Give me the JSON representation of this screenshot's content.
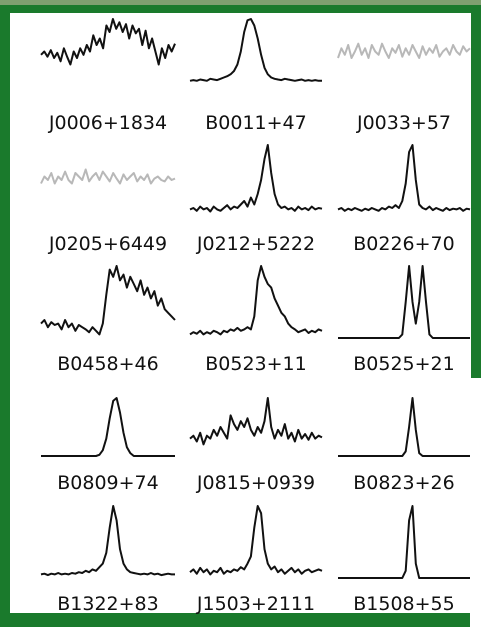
{
  "chart_data": {
    "type": "line",
    "title": "",
    "grid": false,
    "layout": "5 rows x 3 columns of small pulse-profile panels",
    "panels": [
      {
        "label": "J0006+1834",
        "color": "#111111",
        "profile": [
          0.45,
          0.5,
          0.42,
          0.52,
          0.4,
          0.48,
          0.35,
          0.55,
          0.42,
          0.3,
          0.5,
          0.4,
          0.55,
          0.45,
          0.6,
          0.5,
          0.75,
          0.6,
          0.7,
          0.55,
          0.9,
          0.8,
          1.0,
          0.85,
          0.95,
          0.8,
          0.92,
          0.7,
          0.9,
          0.78,
          0.85,
          0.6,
          0.82,
          0.55,
          0.7,
          0.5,
          0.3,
          0.55,
          0.4,
          0.6,
          0.5,
          0.62
        ]
      },
      {
        "label": "B0011+47",
        "color": "#111111",
        "profile": [
          0.05,
          0.06,
          0.05,
          0.07,
          0.06,
          0.05,
          0.08,
          0.07,
          0.06,
          0.08,
          0.1,
          0.12,
          0.15,
          0.2,
          0.3,
          0.5,
          0.8,
          0.98,
          1.0,
          0.9,
          0.7,
          0.45,
          0.25,
          0.15,
          0.1,
          0.08,
          0.07,
          0.06,
          0.08,
          0.07,
          0.06,
          0.05,
          0.06,
          0.07,
          0.05,
          0.06,
          0.05,
          0.06,
          0.05,
          0.05
        ]
      },
      {
        "label": "J0033+57",
        "color": "#b8b8b8",
        "profile": [
          0.4,
          0.55,
          0.45,
          0.6,
          0.4,
          0.5,
          0.62,
          0.45,
          0.55,
          0.4,
          0.6,
          0.5,
          0.45,
          0.62,
          0.5,
          0.4,
          0.55,
          0.48,
          0.6,
          0.42,
          0.55,
          0.45,
          0.6,
          0.5,
          0.4,
          0.58,
          0.45,
          0.55,
          0.48,
          0.6,
          0.42,
          0.5,
          0.55,
          0.45,
          0.6,
          0.5,
          0.45,
          0.58,
          0.5,
          0.55
        ]
      },
      {
        "label": "J0205+6449",
        "color": "#b8b8b8",
        "profile": [
          0.45,
          0.55,
          0.5,
          0.6,
          0.45,
          0.55,
          0.5,
          0.62,
          0.5,
          0.45,
          0.6,
          0.55,
          0.5,
          0.65,
          0.48,
          0.55,
          0.6,
          0.5,
          0.62,
          0.55,
          0.48,
          0.6,
          0.52,
          0.45,
          0.58,
          0.5,
          0.55,
          0.6,
          0.48,
          0.55,
          0.5,
          0.58,
          0.45,
          0.52,
          0.55,
          0.5,
          0.48,
          0.55,
          0.5,
          0.52
        ]
      },
      {
        "label": "J0212+5222",
        "color": "#111111",
        "profile": [
          0.08,
          0.1,
          0.06,
          0.12,
          0.08,
          0.1,
          0.05,
          0.12,
          0.08,
          0.06,
          0.1,
          0.14,
          0.08,
          0.12,
          0.1,
          0.15,
          0.2,
          0.12,
          0.25,
          0.15,
          0.3,
          0.5,
          0.8,
          1.0,
          0.6,
          0.3,
          0.15,
          0.1,
          0.12,
          0.08,
          0.1,
          0.06,
          0.12,
          0.08,
          0.1,
          0.07,
          0.12,
          0.08,
          0.1,
          0.09
        ]
      },
      {
        "label": "B0226+70",
        "color": "#111111",
        "profile": [
          0.08,
          0.1,
          0.06,
          0.09,
          0.07,
          0.1,
          0.08,
          0.06,
          0.09,
          0.07,
          0.1,
          0.08,
          0.06,
          0.1,
          0.08,
          0.12,
          0.1,
          0.14,
          0.1,
          0.2,
          0.45,
          0.9,
          1.0,
          0.5,
          0.15,
          0.1,
          0.08,
          0.12,
          0.07,
          0.1,
          0.08,
          0.06,
          0.1,
          0.07,
          0.09,
          0.08,
          0.1,
          0.06,
          0.09,
          0.08
        ]
      },
      {
        "label": "B0458+46",
        "color": "#111111",
        "profile": [
          0.2,
          0.25,
          0.15,
          0.22,
          0.18,
          0.2,
          0.12,
          0.25,
          0.15,
          0.2,
          0.1,
          0.18,
          0.15,
          0.12,
          0.08,
          0.15,
          0.1,
          0.05,
          0.2,
          0.6,
          0.95,
          0.85,
          1.0,
          0.8,
          0.88,
          0.7,
          0.85,
          0.75,
          0.65,
          0.8,
          0.6,
          0.7,
          0.55,
          0.65,
          0.45,
          0.55,
          0.4,
          0.35,
          0.3,
          0.25
        ]
      },
      {
        "label": "B0523+11",
        "color": "#111111",
        "profile": [
          0.05,
          0.08,
          0.06,
          0.1,
          0.05,
          0.08,
          0.06,
          0.1,
          0.08,
          0.05,
          0.1,
          0.08,
          0.12,
          0.1,
          0.14,
          0.1,
          0.12,
          0.15,
          0.12,
          0.3,
          0.8,
          1.0,
          0.85,
          0.75,
          0.7,
          0.55,
          0.45,
          0.35,
          0.3,
          0.2,
          0.15,
          0.12,
          0.08,
          0.1,
          0.12,
          0.07,
          0.1,
          0.08,
          0.12,
          0.1
        ]
      },
      {
        "label": "B0525+21",
        "color": "#111111",
        "profile": [
          0.0,
          0.0,
          0.0,
          0.0,
          0.0,
          0.0,
          0.0,
          0.0,
          0.0,
          0.0,
          0.0,
          0.0,
          0.0,
          0.0,
          0.0,
          0.0,
          0.0,
          0.0,
          0.0,
          0.05,
          0.5,
          1.0,
          0.5,
          0.2,
          0.5,
          1.0,
          0.5,
          0.05,
          0.0,
          0.0,
          0.0,
          0.0,
          0.0,
          0.0,
          0.0,
          0.0,
          0.0,
          0.0,
          0.0,
          0.0
        ]
      },
      {
        "label": "B0809+74",
        "color": "#111111",
        "profile": [
          0.0,
          0.0,
          0.0,
          0.0,
          0.0,
          0.0,
          0.0,
          0.0,
          0.0,
          0.0,
          0.0,
          0.0,
          0.0,
          0.0,
          0.0,
          0.0,
          0.0,
          0.02,
          0.1,
          0.3,
          0.65,
          0.95,
          1.0,
          0.75,
          0.4,
          0.15,
          0.05,
          0.0,
          0.0,
          0.0,
          0.0,
          0.0,
          0.0,
          0.0,
          0.0,
          0.0,
          0.0,
          0.0,
          0.0,
          0.0
        ]
      },
      {
        "label": "J0815+0939",
        "color": "#111111",
        "profile": [
          0.3,
          0.35,
          0.25,
          0.4,
          0.2,
          0.35,
          0.3,
          0.45,
          0.35,
          0.5,
          0.4,
          0.3,
          0.7,
          0.55,
          0.45,
          0.6,
          0.5,
          0.65,
          0.45,
          0.35,
          0.5,
          0.4,
          0.6,
          1.0,
          0.5,
          0.3,
          0.45,
          0.35,
          0.55,
          0.3,
          0.4,
          0.25,
          0.45,
          0.3,
          0.38,
          0.28,
          0.4,
          0.3,
          0.35,
          0.32
        ]
      },
      {
        "label": "B0823+26",
        "color": "#111111",
        "profile": [
          0.0,
          0.0,
          0.0,
          0.0,
          0.0,
          0.0,
          0.0,
          0.0,
          0.0,
          0.0,
          0.0,
          0.0,
          0.0,
          0.0,
          0.0,
          0.0,
          0.0,
          0.0,
          0.0,
          0.0,
          0.08,
          0.5,
          1.0,
          0.45,
          0.05,
          0.0,
          0.0,
          0.0,
          0.0,
          0.0,
          0.0,
          0.0,
          0.0,
          0.0,
          0.0,
          0.0,
          0.0,
          0.0,
          0.0,
          0.0
        ]
      },
      {
        "label": "B1322+83",
        "color": "#111111",
        "profile": [
          0.05,
          0.06,
          0.04,
          0.06,
          0.05,
          0.07,
          0.05,
          0.06,
          0.05,
          0.07,
          0.06,
          0.08,
          0.07,
          0.1,
          0.08,
          0.12,
          0.1,
          0.15,
          0.2,
          0.35,
          0.7,
          1.0,
          0.8,
          0.4,
          0.2,
          0.12,
          0.08,
          0.07,
          0.06,
          0.05,
          0.06,
          0.05,
          0.07,
          0.05,
          0.06,
          0.04,
          0.05,
          0.06,
          0.05,
          0.05
        ]
      },
      {
        "label": "J1503+2111",
        "color": "#111111",
        "profile": [
          0.08,
          0.12,
          0.06,
          0.14,
          0.08,
          0.12,
          0.05,
          0.1,
          0.08,
          0.14,
          0.06,
          0.1,
          0.08,
          0.12,
          0.1,
          0.15,
          0.12,
          0.2,
          0.3,
          0.7,
          1.0,
          0.9,
          0.4,
          0.2,
          0.12,
          0.16,
          0.08,
          0.12,
          0.06,
          0.1,
          0.14,
          0.08,
          0.12,
          0.06,
          0.1,
          0.12,
          0.08,
          0.1,
          0.12,
          0.1
        ]
      },
      {
        "label": "B1508+55",
        "color": "#111111",
        "profile": [
          0.0,
          0.0,
          0.0,
          0.0,
          0.0,
          0.0,
          0.0,
          0.0,
          0.0,
          0.0,
          0.0,
          0.0,
          0.0,
          0.0,
          0.0,
          0.0,
          0.0,
          0.0,
          0.0,
          0.0,
          0.1,
          0.8,
          1.0,
          0.2,
          0.0,
          0.0,
          0.0,
          0.0,
          0.0,
          0.0,
          0.0,
          0.0,
          0.0,
          0.0,
          0.0,
          0.0,
          0.0,
          0.0,
          0.0,
          0.0
        ]
      }
    ]
  }
}
